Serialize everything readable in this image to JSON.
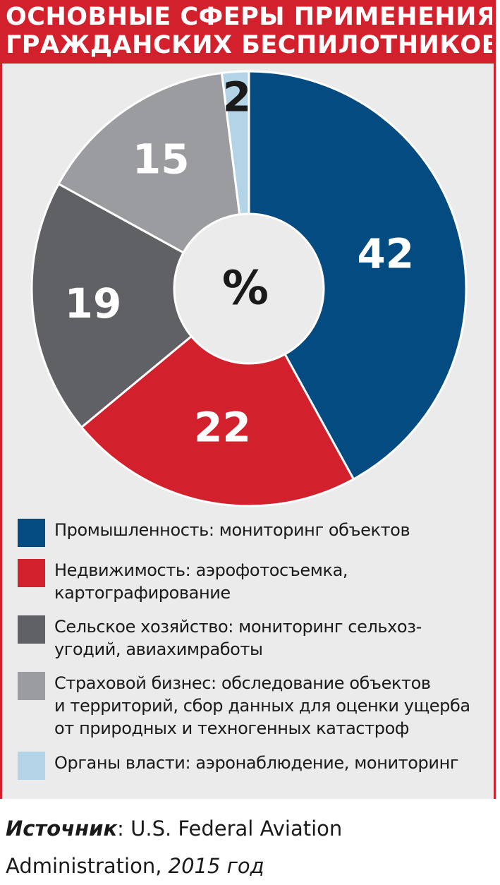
{
  "title": {
    "line1": "ОСНОВНЫЕ СФЕРЫ ПРИМЕНЕНИЯ",
    "line2": "ГРАЖДАНСКИХ БЕСПИЛОТНИКОВ"
  },
  "chart_data": {
    "type": "pie",
    "title": "ОСНОВНЫЕ СФЕРЫ ПРИМЕНЕНИЯ ГРАЖДАНСКИХ БЕСПИЛОТНИКОВ",
    "center_label": "%",
    "slices": [
      {
        "label": "Промышленность: мониторинг объектов",
        "value": 42,
        "display": "42",
        "color": "#034b80",
        "text_color": "#ffffff"
      },
      {
        "label": "Недвижимость: аэрофотосъемка, картографирование",
        "value": 22,
        "display": "22",
        "color": "#d3202d",
        "text_color": "#ffffff"
      },
      {
        "label": "Сельское хозяйство: мониторинг сельхоз-угодий, авиахимработы",
        "value": 19,
        "display": "19",
        "color": "#606164",
        "text_color": "#ffffff"
      },
      {
        "label": "Страховой бизнес: обследование объектов и территорий, сбор данных для оценки ущерба от природных и техногенных катастроф",
        "value": 15,
        "display": "15",
        "color": "#9b9c9f",
        "text_color": "#ffffff"
      },
      {
        "label": "Органы власти: аэронаблюдение, мониторинг",
        "value": 2,
        "display": "2",
        "color": "#b3d3e6",
        "text_color": "#1a1a1a"
      }
    ],
    "legend_placement": "bottom"
  },
  "legend": [
    {
      "color": "#034b80",
      "lines": [
        "Промышленность: мониторинг объектов"
      ]
    },
    {
      "color": "#d3202d",
      "lines": [
        "Недвижимость: аэрофотосъемка,",
        "картографирование"
      ]
    },
    {
      "color": "#606164",
      "lines": [
        "Сельское хозяйство: мониторинг сельхоз-",
        "угодий, авиахимработы"
      ]
    },
    {
      "color": "#9b9c9f",
      "lines": [
        "Страховой бизнес: обследование объектов",
        "и территорий, сбор данных для оценки ущерба",
        "от природных и техногенных катастроф"
      ]
    },
    {
      "color": "#b3d3e6",
      "lines": [
        "Органы власти: аэронаблюдение, мониторинг"
      ]
    }
  ],
  "source": {
    "label": "Источник",
    "separator": ": ",
    "text_line1": "U.S. Federal Aviation",
    "text_line2": "Administration, ",
    "year": "2015 год"
  },
  "colors": {
    "accent_red": "#d3202d",
    "background_panel": "#ebebeb"
  }
}
